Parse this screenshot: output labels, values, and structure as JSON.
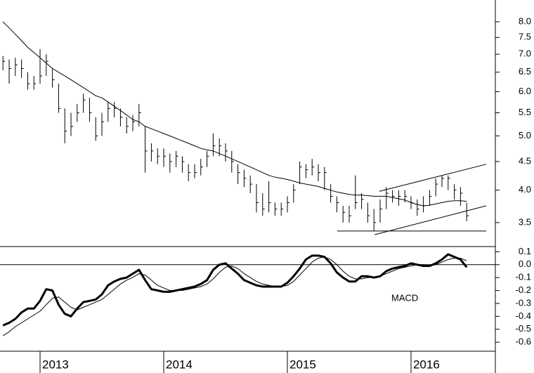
{
  "chart_data": [
    {
      "type": "ohlc",
      "yscale": "log",
      "color": "#000000",
      "x": [
        2012.7,
        2012.75,
        2012.8,
        2012.85,
        2012.9,
        2012.95,
        2013.0,
        2013.05,
        2013.1,
        2013.15,
        2013.2,
        2013.25,
        2013.3,
        2013.35,
        2013.4,
        2013.45,
        2013.5,
        2013.55,
        2013.6,
        2013.65,
        2013.7,
        2013.75,
        2013.8,
        2013.85,
        2013.9,
        2013.95,
        2014.0,
        2014.05,
        2014.1,
        2014.15,
        2014.2,
        2014.25,
        2014.3,
        2014.35,
        2014.4,
        2014.45,
        2014.5,
        2014.55,
        2014.6,
        2014.65,
        2014.7,
        2014.75,
        2014.8,
        2014.85,
        2014.9,
        2014.95,
        2015.0,
        2015.05,
        2015.1,
        2015.15,
        2015.2,
        2015.25,
        2015.3,
        2015.35,
        2015.4,
        2015.45,
        2015.5,
        2015.55,
        2015.6,
        2015.65,
        2015.7,
        2015.75,
        2015.8,
        2015.85,
        2015.9,
        2015.95,
        2016.0,
        2016.05,
        2016.1,
        2016.15,
        2016.2,
        2016.25,
        2016.3,
        2016.35,
        2016.4,
        2016.45
      ],
      "high": [
        6.95,
        6.85,
        6.9,
        6.85,
        6.5,
        6.4,
        7.15,
        7.0,
        6.6,
        6.2,
        5.6,
        5.5,
        5.7,
        5.95,
        5.85,
        5.4,
        5.5,
        5.75,
        5.75,
        5.6,
        5.4,
        5.45,
        5.7,
        5.2,
        4.85,
        4.75,
        4.75,
        4.65,
        4.7,
        4.6,
        4.45,
        4.45,
        4.55,
        4.7,
        5.05,
        4.95,
        4.85,
        4.7,
        4.45,
        4.35,
        4.25,
        4.1,
        3.95,
        4.15,
        3.8,
        3.8,
        3.9,
        4.1,
        4.5,
        4.45,
        4.55,
        4.45,
        4.4,
        4.1,
        3.9,
        3.75,
        3.75,
        4.25,
        3.95,
        3.8,
        3.7,
        3.85,
        4.05,
        4.0,
        4.0,
        4.0,
        3.9,
        3.85,
        3.9,
        4.0,
        4.2,
        4.25,
        4.25,
        4.1,
        4.05,
        3.8
      ],
      "low": [
        6.55,
        6.2,
        6.4,
        6.35,
        6.05,
        6.05,
        6.2,
        6.4,
        6.1,
        5.5,
        4.85,
        5.0,
        5.3,
        5.5,
        5.3,
        4.9,
        5.0,
        5.3,
        5.4,
        5.2,
        5.05,
        5.1,
        5.2,
        4.3,
        4.5,
        4.45,
        4.4,
        4.3,
        4.4,
        4.3,
        4.15,
        4.2,
        4.25,
        4.4,
        4.6,
        4.6,
        4.5,
        4.3,
        4.1,
        4.05,
        3.95,
        3.65,
        3.6,
        3.65,
        3.6,
        3.6,
        3.65,
        3.8,
        4.1,
        4.2,
        4.25,
        4.15,
        4.0,
        3.8,
        3.65,
        3.5,
        3.5,
        3.7,
        3.7,
        3.5,
        3.38,
        3.5,
        3.7,
        3.8,
        3.75,
        3.8,
        3.7,
        3.6,
        3.65,
        3.75,
        3.9,
        4.05,
        4.0,
        3.85,
        3.75,
        3.52
      ],
      "close": [
        6.8,
        6.6,
        6.7,
        6.6,
        6.2,
        6.2,
        6.4,
        6.8,
        6.3,
        5.6,
        5.1,
        5.2,
        5.5,
        5.8,
        5.5,
        5.0,
        5.3,
        5.6,
        5.6,
        5.4,
        5.2,
        5.3,
        5.5,
        4.7,
        4.7,
        4.6,
        4.6,
        4.5,
        4.6,
        4.5,
        4.3,
        4.3,
        4.4,
        4.6,
        4.8,
        4.8,
        4.7,
        4.5,
        4.3,
        4.2,
        4.1,
        3.8,
        3.7,
        3.8,
        3.7,
        3.7,
        3.8,
        4.0,
        4.4,
        4.35,
        4.4,
        4.3,
        4.3,
        3.9,
        3.8,
        3.65,
        3.6,
        3.8,
        3.85,
        3.6,
        3.5,
        3.7,
        3.95,
        3.9,
        3.9,
        3.9,
        3.8,
        3.7,
        3.75,
        3.9,
        4.1,
        4.2,
        4.2,
        4.0,
        3.95,
        3.6
      ],
      "ma": {
        "color": "#000000",
        "values": [
          8.0,
          7.8,
          7.6,
          7.4,
          7.2,
          7.05,
          6.9,
          6.75,
          6.6,
          6.5,
          6.4,
          6.3,
          6.2,
          6.1,
          6.0,
          5.9,
          5.85,
          5.75,
          5.65,
          5.55,
          5.45,
          5.35,
          5.3,
          5.2,
          5.15,
          5.1,
          5.05,
          5.0,
          4.95,
          4.9,
          4.85,
          4.8,
          4.75,
          4.72,
          4.7,
          4.65,
          4.6,
          4.55,
          4.5,
          4.45,
          4.4,
          4.35,
          4.3,
          4.25,
          4.22,
          4.2,
          4.18,
          4.15,
          4.12,
          4.1,
          4.08,
          4.06,
          4.03,
          4.0,
          3.97,
          3.95,
          3.93,
          3.92,
          3.92,
          3.91,
          3.9,
          3.9,
          3.9,
          3.88,
          3.86,
          3.84,
          3.8,
          3.77,
          3.75,
          3.76,
          3.78,
          3.8,
          3.82,
          3.83,
          3.83,
          3.82
        ]
      },
      "lines": [
        {
          "x": [
            2015.744,
            2016.608
          ],
          "values": [
            3.98,
            4.45
          ]
        },
        {
          "x": [
            2015.705,
            2016.608
          ],
          "values": [
            3.33,
            3.75
          ]
        },
        {
          "x": [
            2015.403,
            2016.608
          ],
          "values": [
            3.38,
            3.38
          ]
        }
      ],
      "xlim": [
        2012.676,
        2016.682
      ],
      "ylim": [
        3.18,
        8.75
      ],
      "yticks": [
        {
          "value": 8,
          "label": "8.0"
        },
        7.5,
        {
          "value": 7,
          "label": "7.0"
        },
        6.5,
        {
          "value": 6,
          "label": "6.0"
        },
        5.5,
        {
          "value": 5,
          "label": "5.0"
        },
        4.5,
        {
          "value": 4,
          "label": "4.0"
        },
        3.5
      ]
    },
    {
      "type": "line",
      "annotation": "MACD",
      "zeroline": true,
      "x": [
        2012.7,
        2012.75,
        2012.8,
        2012.85,
        2012.9,
        2012.95,
        2013.0,
        2013.05,
        2013.1,
        2013.15,
        2013.2,
        2013.25,
        2013.3,
        2013.35,
        2013.4,
        2013.45,
        2013.5,
        2013.55,
        2013.6,
        2013.65,
        2013.7,
        2013.75,
        2013.8,
        2013.85,
        2013.9,
        2013.95,
        2014.0,
        2014.05,
        2014.1,
        2014.15,
        2014.2,
        2014.25,
        2014.3,
        2014.35,
        2014.4,
        2014.45,
        2014.5,
        2014.55,
        2014.6,
        2014.65,
        2014.7,
        2014.75,
        2014.8,
        2014.85,
        2014.9,
        2014.95,
        2015.0,
        2015.05,
        2015.1,
        2015.15,
        2015.2,
        2015.25,
        2015.3,
        2015.35,
        2015.4,
        2015.45,
        2015.5,
        2015.55,
        2015.6,
        2015.65,
        2015.7,
        2015.75,
        2015.8,
        2015.85,
        2015.9,
        2015.95,
        2016.0,
        2016.05,
        2016.1,
        2016.15,
        2016.2,
        2016.25,
        2016.3,
        2016.35,
        2016.4,
        2016.45
      ],
      "series": [
        {
          "color": "#000000",
          "width": 3,
          "values": [
            -0.47,
            -0.45,
            -0.42,
            -0.37,
            -0.34,
            -0.34,
            -0.28,
            -0.19,
            -0.2,
            -0.31,
            -0.38,
            -0.4,
            -0.34,
            -0.29,
            -0.28,
            -0.27,
            -0.23,
            -0.16,
            -0.13,
            -0.11,
            -0.1,
            -0.07,
            -0.04,
            -0.12,
            -0.19,
            -0.2,
            -0.21,
            -0.21,
            -0.2,
            -0.19,
            -0.18,
            -0.17,
            -0.15,
            -0.12,
            -0.04,
            0.0,
            0.01,
            -0.03,
            -0.07,
            -0.12,
            -0.14,
            -0.16,
            -0.17,
            -0.17,
            -0.17,
            -0.17,
            -0.14,
            -0.09,
            -0.03,
            0.04,
            0.07,
            0.07,
            0.06,
            0.01,
            -0.06,
            -0.1,
            -0.13,
            -0.13,
            -0.09,
            -0.09,
            -0.1,
            -0.09,
            -0.05,
            -0.03,
            -0.02,
            -0.01,
            0.01,
            0.0,
            -0.01,
            -0.01,
            0.01,
            0.04,
            0.08,
            0.06,
            0.04,
            -0.02
          ]
        },
        {
          "color": "#000000",
          "width": 1,
          "values": [
            -0.55,
            -0.52,
            -0.48,
            -0.45,
            -0.42,
            -0.39,
            -0.36,
            -0.31,
            -0.26,
            -0.25,
            -0.29,
            -0.33,
            -0.35,
            -0.33,
            -0.31,
            -0.29,
            -0.27,
            -0.23,
            -0.19,
            -0.15,
            -0.12,
            -0.1,
            -0.07,
            -0.08,
            -0.12,
            -0.16,
            -0.18,
            -0.2,
            -0.2,
            -0.2,
            -0.19,
            -0.18,
            -0.17,
            -0.15,
            -0.11,
            -0.06,
            -0.02,
            -0.01,
            -0.03,
            -0.07,
            -0.1,
            -0.13,
            -0.15,
            -0.16,
            -0.17,
            -0.17,
            -0.16,
            -0.13,
            -0.08,
            -0.03,
            0.02,
            0.05,
            0.06,
            0.04,
            0.0,
            -0.05,
            -0.09,
            -0.11,
            -0.11,
            -0.1,
            -0.1,
            -0.09,
            -0.07,
            -0.05,
            -0.03,
            -0.02,
            -0.01,
            0.0,
            0.0,
            -0.01,
            0.0,
            0.02,
            0.04,
            0.05,
            0.05,
            0.03
          ]
        }
      ],
      "xlim": [
        2012.676,
        2016.682
      ],
      "ylim": [
        -0.67,
        0.14
      ],
      "xticks": [
        2013,
        2014,
        2015,
        2016
      ],
      "yticks": [
        0.1,
        {
          "value": 0,
          "label": "0.0"
        },
        -0.1,
        -0.2,
        -0.3,
        -0.4,
        -0.5,
        -0.6
      ]
    }
  ]
}
